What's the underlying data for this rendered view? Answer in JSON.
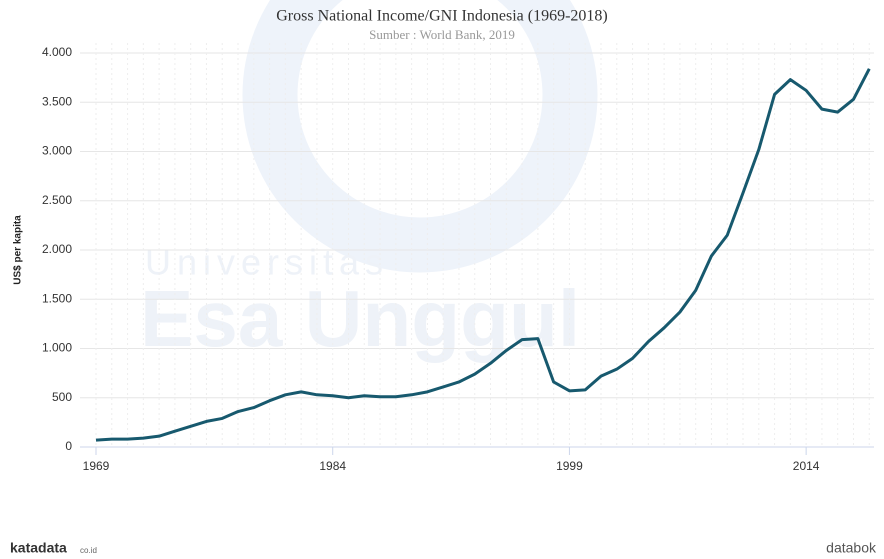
{
  "chart_data": {
    "type": "line",
    "title": "Gross National Income/GNI Indonesia (1969-2018)",
    "subtitle": "Sumber : World Bank, 2019",
    "y_label": "US$ per kapita",
    "x": [
      1969,
      1970,
      1971,
      1972,
      1973,
      1974,
      1975,
      1976,
      1977,
      1978,
      1979,
      1980,
      1981,
      1982,
      1983,
      1984,
      1985,
      1986,
      1987,
      1988,
      1989,
      1990,
      1991,
      1992,
      1993,
      1994,
      1995,
      1996,
      1997,
      1998,
      1999,
      2000,
      2001,
      2002,
      2003,
      2004,
      2005,
      2006,
      2007,
      2008,
      2009,
      2010,
      2011,
      2012,
      2013,
      2014,
      2015,
      2016,
      2017,
      2018
    ],
    "series": [
      {
        "name": "GNI",
        "color": "#17596e",
        "values": [
          70,
          80,
          80,
          90,
          110,
          160,
          210,
          260,
          290,
          360,
          400,
          470,
          530,
          560,
          530,
          520,
          500,
          520,
          510,
          510,
          530,
          560,
          610,
          660,
          740,
          850,
          980,
          1090,
          1100,
          660,
          570,
          580,
          720,
          790,
          900,
          1070,
          1210,
          1370,
          1590,
          1940,
          2150,
          2580,
          3020,
          3580,
          3730,
          3620,
          3430,
          3400,
          3530,
          3840
        ]
      }
    ],
    "xlim": [
      1969,
      2018.3
    ],
    "xticks": [
      1969,
      1984,
      1999,
      2014
    ],
    "ylim": [
      0,
      4000
    ],
    "yticks": [
      0,
      500,
      {
        "value": 1000,
        "label": "1.000"
      },
      {
        "value": 1500,
        "label": "1.500"
      },
      {
        "value": 2000,
        "label": "2.000"
      },
      {
        "value": 2500,
        "label": "2.500"
      },
      {
        "value": 3000,
        "label": "3.000"
      },
      {
        "value": 3500,
        "label": "3.500"
      },
      {
        "value": 4000,
        "label": "4.000"
      }
    ],
    "grid": true
  },
  "watermark": [
    "Universitas",
    "Esa Unggul"
  ],
  "footer": {
    "left": "katadata",
    "left_suffix": "co.id",
    "right": "databok"
  }
}
